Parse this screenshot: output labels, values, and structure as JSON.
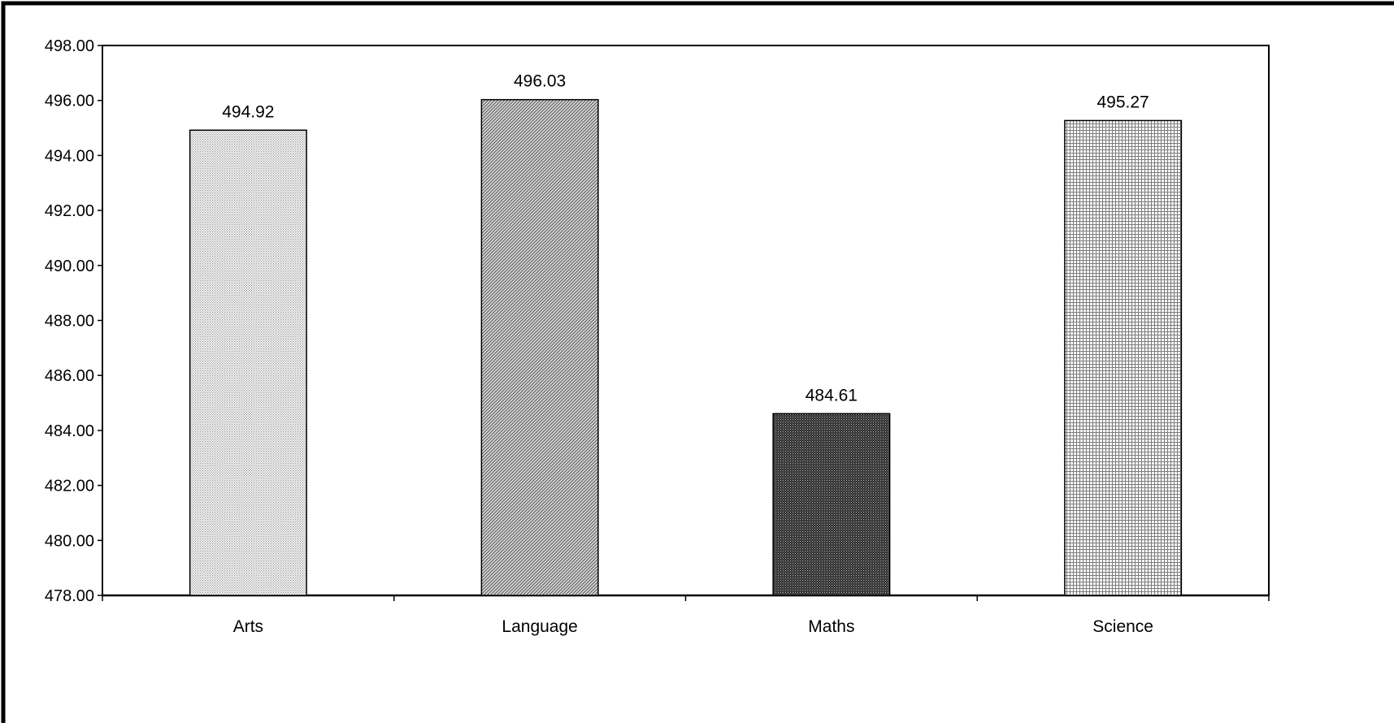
{
  "chart_data": {
    "type": "bar",
    "title": "",
    "xlabel": "",
    "ylabel": "",
    "categories": [
      "Arts",
      "Language",
      "Maths",
      "Science"
    ],
    "values": [
      494.92,
      496.03,
      484.61,
      495.27
    ],
    "value_labels": [
      "494.92",
      "496.03",
      "484.61",
      "495.27"
    ],
    "ylim": [
      478,
      498
    ],
    "y_ticks": [
      478,
      480,
      482,
      484,
      486,
      488,
      490,
      492,
      494,
      496,
      498
    ],
    "y_tick_labels": [
      "478.00",
      "480.00",
      "482.00",
      "484.00",
      "486.00",
      "488.00",
      "490.00",
      "492.00",
      "494.00",
      "496.00",
      "498.00"
    ],
    "grid": false,
    "legend": "none",
    "bar_patterns": [
      "fine-dots",
      "diagonal-hatch",
      "dark-dense-dots",
      "grid-hatch"
    ]
  }
}
